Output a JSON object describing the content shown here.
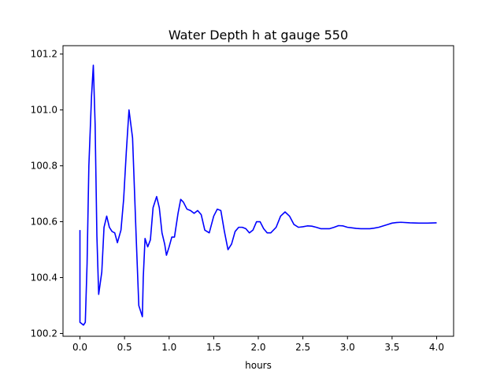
{
  "chart_data": {
    "type": "line",
    "title": "Water Depth h at gauge 550",
    "xlabel": "hours",
    "ylabel": "",
    "xlim": [
      -0.19,
      4.19
    ],
    "ylim": [
      100.19,
      101.23
    ],
    "xticks": [
      0.0,
      0.5,
      1.0,
      1.5,
      2.0,
      2.5,
      3.0,
      3.5,
      4.0
    ],
    "xtick_labels": [
      "0.0",
      "0.5",
      "1.0",
      "1.5",
      "2.0",
      "2.5",
      "3.0",
      "3.5",
      "4.0"
    ],
    "yticks": [
      100.2,
      100.4,
      100.6,
      100.8,
      101.0,
      101.2
    ],
    "ytick_labels": [
      "100.2",
      "100.4",
      "100.6",
      "100.8",
      "101.0",
      "101.2"
    ],
    "grid": false,
    "series": [
      {
        "color": "#0000ff",
        "x": [
          0.0,
          0.0,
          0.04,
          0.06,
          0.08,
          0.1,
          0.13,
          0.15,
          0.17,
          0.19,
          0.21,
          0.245,
          0.27,
          0.3,
          0.33,
          0.36,
          0.39,
          0.42,
          0.46,
          0.49,
          0.52,
          0.55,
          0.59,
          0.63,
          0.66,
          0.7,
          0.71,
          0.73,
          0.76,
          0.79,
          0.82,
          0.86,
          0.89,
          0.92,
          0.95,
          0.97,
          1.0,
          1.03,
          1.06,
          1.1,
          1.13,
          1.16,
          1.2,
          1.24,
          1.28,
          1.32,
          1.36,
          1.4,
          1.45,
          1.5,
          1.54,
          1.58,
          1.62,
          1.66,
          1.7,
          1.74,
          1.78,
          1.82,
          1.86,
          1.9,
          1.94,
          1.98,
          2.02,
          2.06,
          2.1,
          2.14,
          2.2,
          2.25,
          2.3,
          2.35,
          2.4,
          2.45,
          2.5,
          2.55,
          2.6,
          2.65,
          2.7,
          2.75,
          2.8,
          2.85,
          2.9,
          2.95,
          3.0,
          3.05,
          3.1,
          3.15,
          3.2,
          3.25,
          3.3,
          3.35,
          3.4,
          3.45,
          3.5,
          3.55,
          3.6,
          3.7,
          3.8,
          3.9,
          4.0
        ],
        "y": [
          100.57,
          100.24,
          100.23,
          100.24,
          100.45,
          100.8,
          101.05,
          101.16,
          100.95,
          100.55,
          100.34,
          100.42,
          100.58,
          100.62,
          100.58,
          100.565,
          100.56,
          100.525,
          100.57,
          100.68,
          100.85,
          101.0,
          100.9,
          100.55,
          100.3,
          100.26,
          100.4,
          100.54,
          100.51,
          100.535,
          100.65,
          100.69,
          100.65,
          100.56,
          100.52,
          100.48,
          100.51,
          100.545,
          100.545,
          100.63,
          100.68,
          100.67,
          100.645,
          100.64,
          100.63,
          100.64,
          100.625,
          100.57,
          100.56,
          100.62,
          100.645,
          100.64,
          100.565,
          100.5,
          100.52,
          100.565,
          100.58,
          100.58,
          100.575,
          100.56,
          100.57,
          100.6,
          100.6,
          100.575,
          100.56,
          100.56,
          100.58,
          100.62,
          100.635,
          100.62,
          100.59,
          100.58,
          100.582,
          100.585,
          100.584,
          100.58,
          100.575,
          100.575,
          100.575,
          100.58,
          100.586,
          100.585,
          100.58,
          100.578,
          100.576,
          100.575,
          100.575,
          100.575,
          100.577,
          100.58,
          100.585,
          100.59,
          100.595,
          100.597,
          100.598,
          100.596,
          100.595,
          100.595,
          100.596
        ]
      }
    ]
  }
}
